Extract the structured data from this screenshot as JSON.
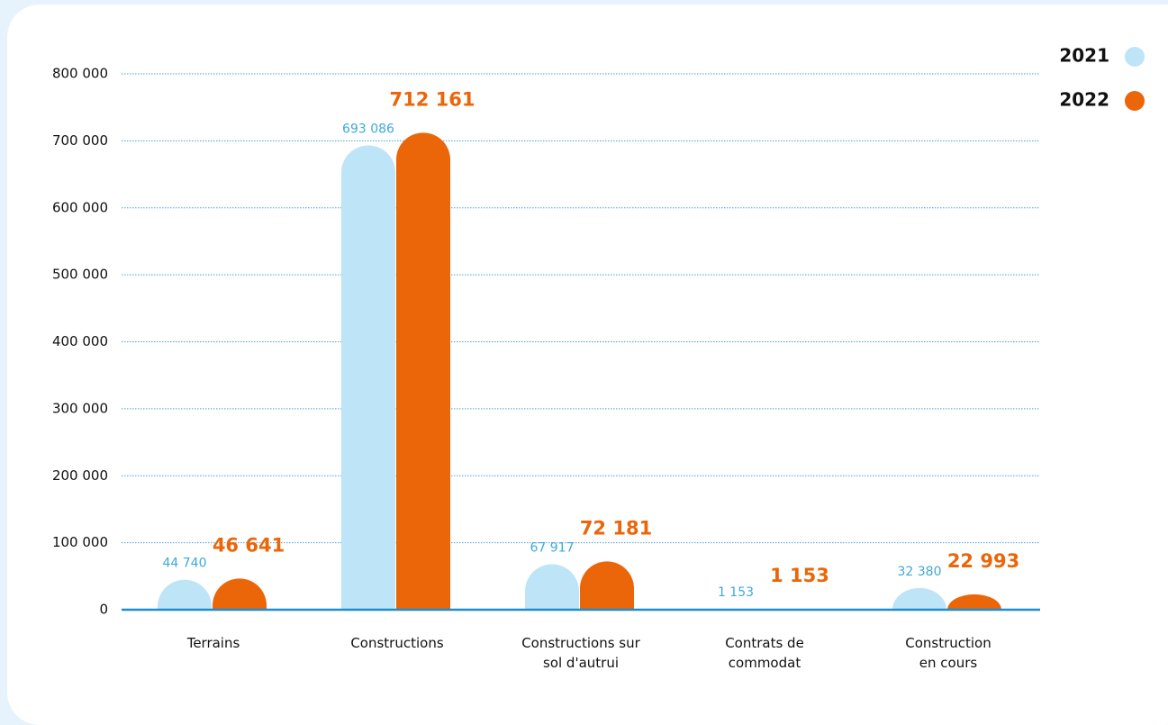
{
  "chart_data": {
    "type": "bar",
    "categories": [
      [
        "Terrains"
      ],
      [
        "Constructions"
      ],
      [
        "Constructions sur",
        "sol d'autrui"
      ],
      [
        "Contrats de",
        "commodat"
      ],
      [
        "Construction",
        "en cours"
      ]
    ],
    "series": [
      {
        "name": "2021",
        "color": "#bee4f8",
        "label_color": "#3ea9dc",
        "values": [
          44740,
          693086,
          67917,
          1153,
          32380
        ],
        "value_labels": [
          "44 740",
          "693 086",
          "67 917",
          "1 153",
          "32 380"
        ]
      },
      {
        "name": "2022",
        "color": "#ea6608",
        "label_color": "#ea6608",
        "values": [
          46641,
          712161,
          72181,
          1153,
          22993
        ],
        "value_labels": [
          "46 641",
          "712 161",
          "72 181",
          "1 153",
          "22 993"
        ]
      }
    ],
    "ylim": [
      0,
      800000
    ],
    "yticks": [
      0,
      {
        "value": 100000,
        "label": "100 000"
      },
      {
        "value": 200000,
        "label": "200 000"
      },
      {
        "value": 300000,
        "label": "300 000"
      },
      {
        "value": 400000,
        "label": "400 000"
      },
      {
        "value": 500000,
        "label": "500 000"
      },
      {
        "value": 600000,
        "label": "600 000"
      },
      {
        "value": 700000,
        "label": "700 000"
      },
      {
        "value": 800000,
        "label": "800 000"
      }
    ],
    "grid": true,
    "legend": "top-right"
  }
}
